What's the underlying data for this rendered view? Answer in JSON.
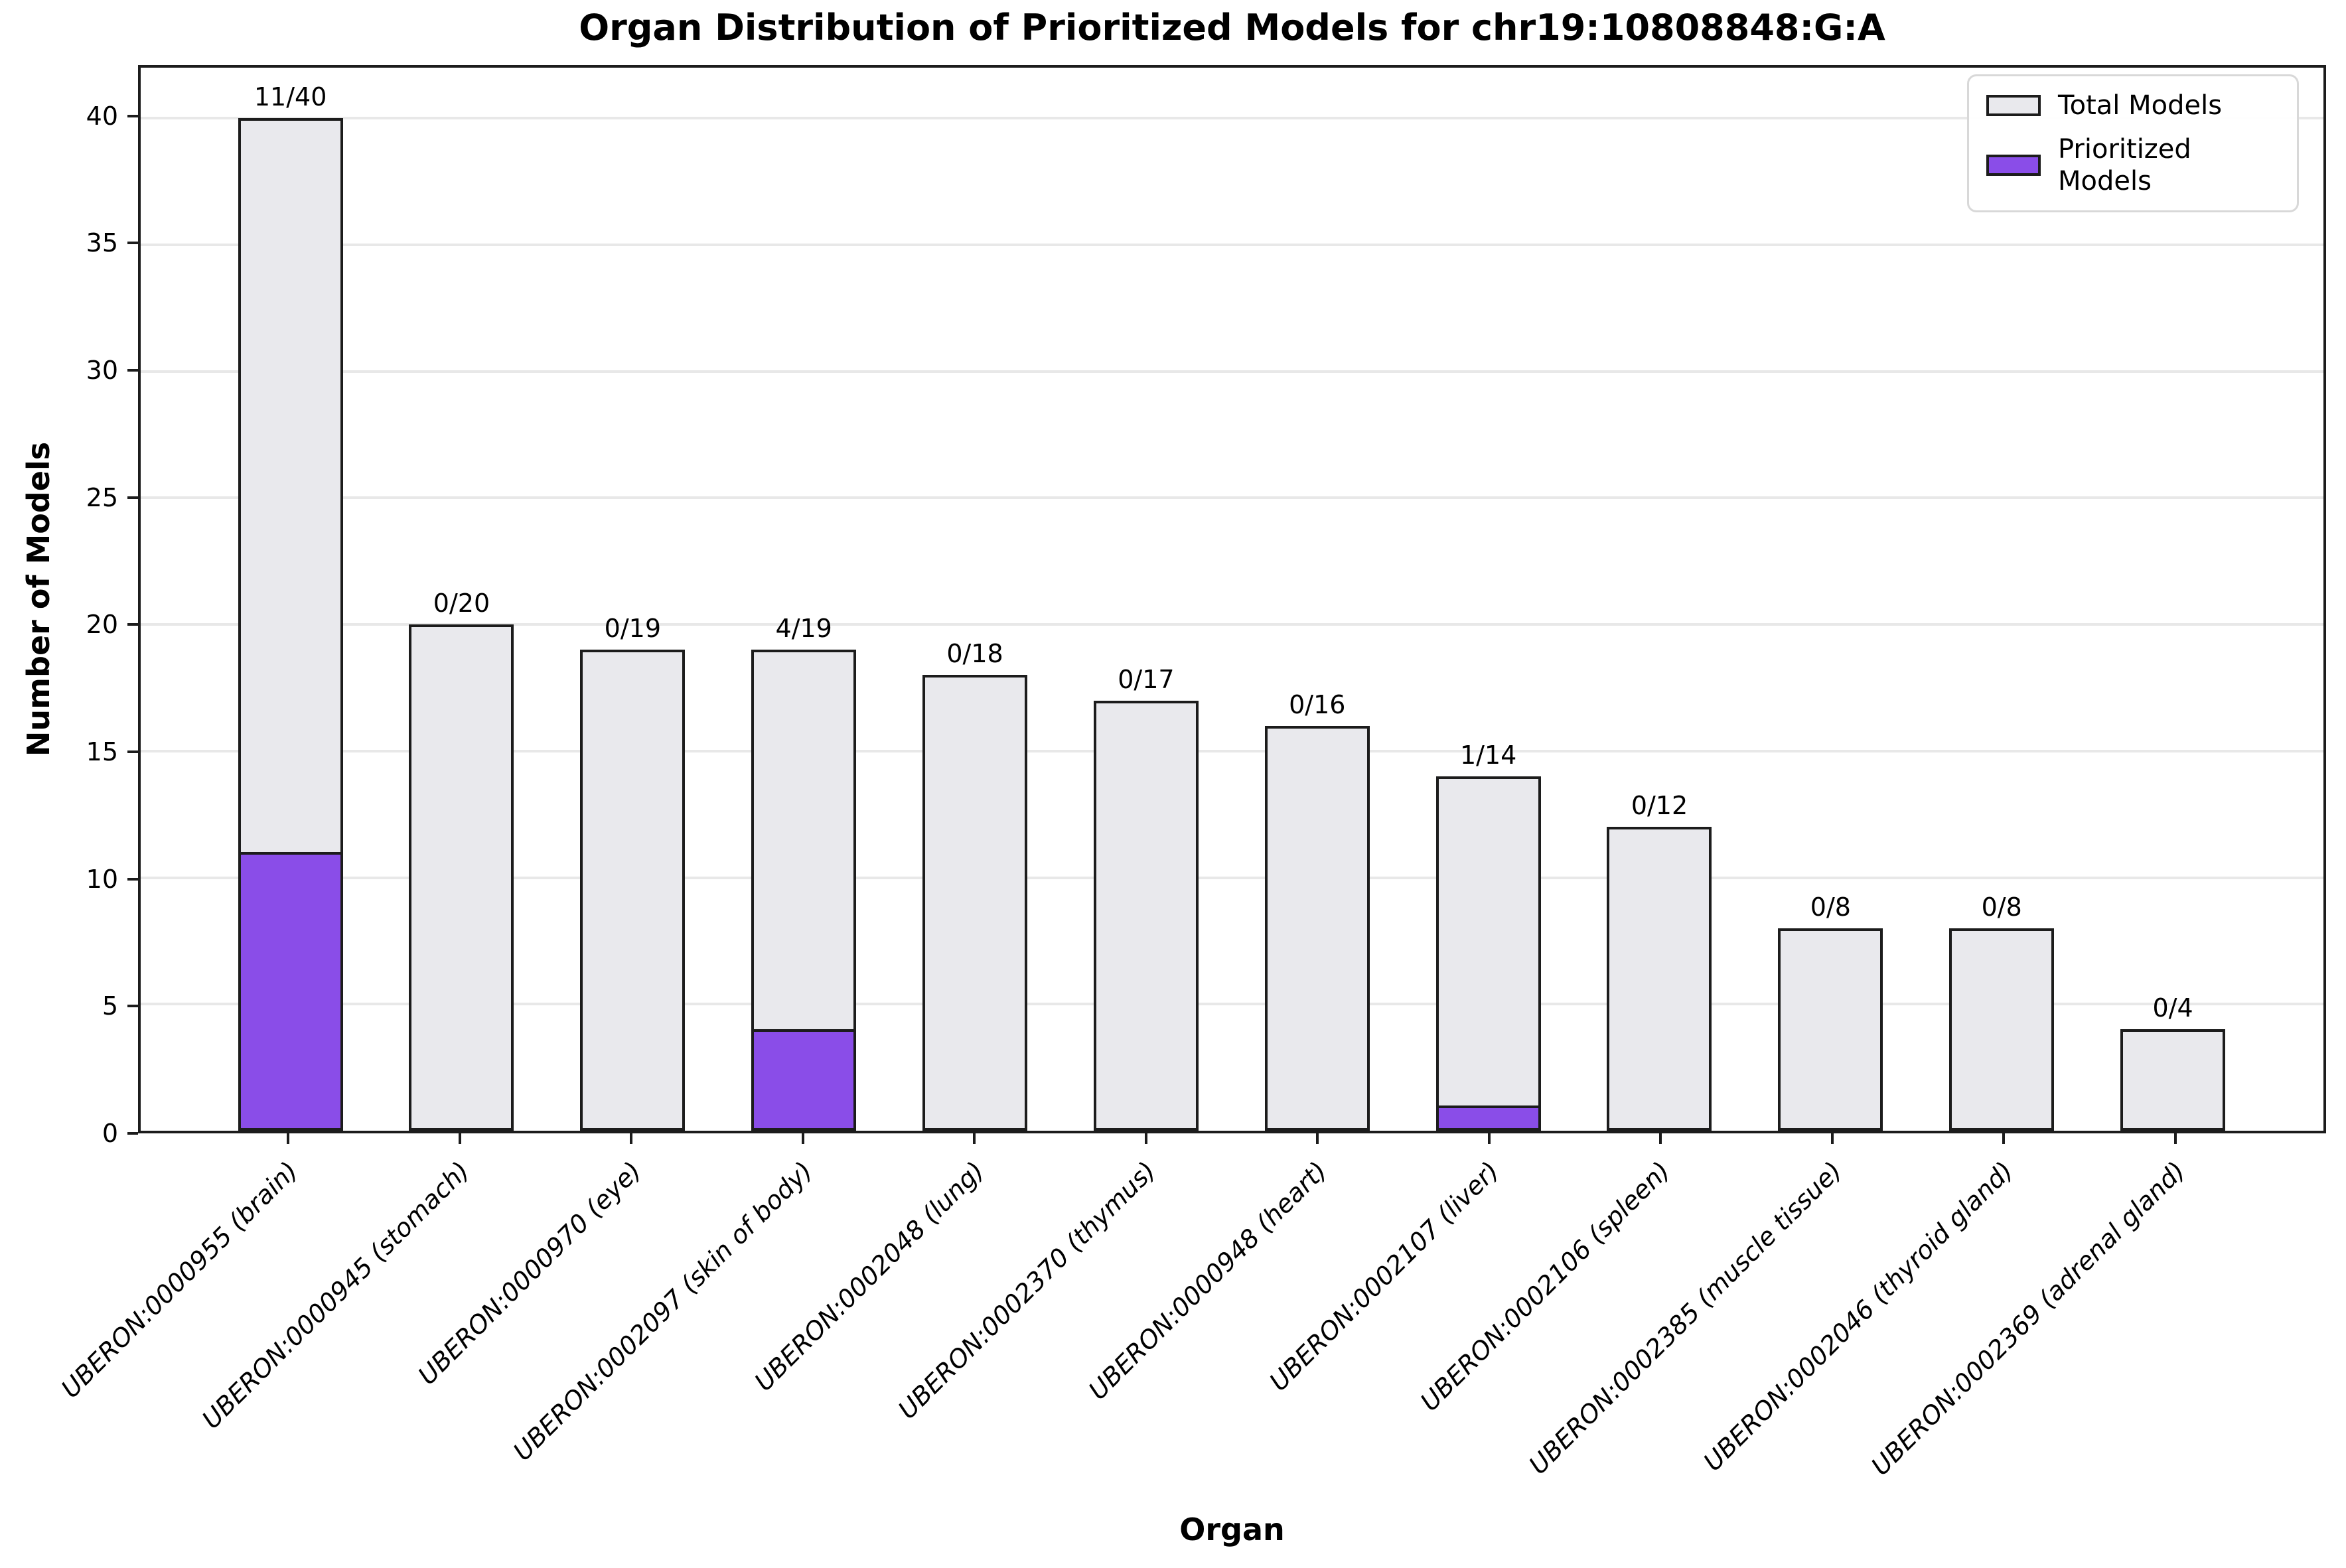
{
  "chart_data": {
    "type": "bar",
    "title": "Organ Distribution of Prioritized Models for chr19:10808848:G:A",
    "xlabel": "Organ",
    "ylabel": "Number of Models",
    "categories": [
      "UBERON:0000955 (brain)",
      "UBERON:0000945 (stomach)",
      "UBERON:0000970 (eye)",
      "UBERON:0002097 (skin of body)",
      "UBERON:0002048 (lung)",
      "UBERON:0002370 (thymus)",
      "UBERON:0000948 (heart)",
      "UBERON:0002107 (liver)",
      "UBERON:0002106 (spleen)",
      "UBERON:0002385 (muscle tissue)",
      "UBERON:0002046 (thyroid gland)",
      "UBERON:0002369 (adrenal gland)"
    ],
    "series": [
      {
        "name": "Total Models",
        "values": [
          40,
          20,
          19,
          19,
          18,
          17,
          16,
          14,
          12,
          8,
          8,
          4
        ],
        "color": "#E9E9ED"
      },
      {
        "name": "Prioritized Models",
        "values": [
          11,
          0,
          0,
          4,
          0,
          0,
          0,
          1,
          0,
          0,
          0,
          0
        ],
        "color": "#8A4DE8"
      }
    ],
    "bar_labels": [
      "11/40",
      "0/20",
      "0/19",
      "4/19",
      "0/18",
      "0/17",
      "0/16",
      "1/14",
      "0/12",
      "0/8",
      "0/8",
      "0/4"
    ],
    "yticks": [
      0,
      5,
      10,
      15,
      20,
      25,
      30,
      35,
      40
    ],
    "ylim": [
      0,
      42
    ],
    "grid": "horizontal",
    "legend_position": "upper right",
    "colors": {
      "edge": "#1C1C1C",
      "grid": "#E8E8E8",
      "background": "#FFFFFF"
    }
  }
}
